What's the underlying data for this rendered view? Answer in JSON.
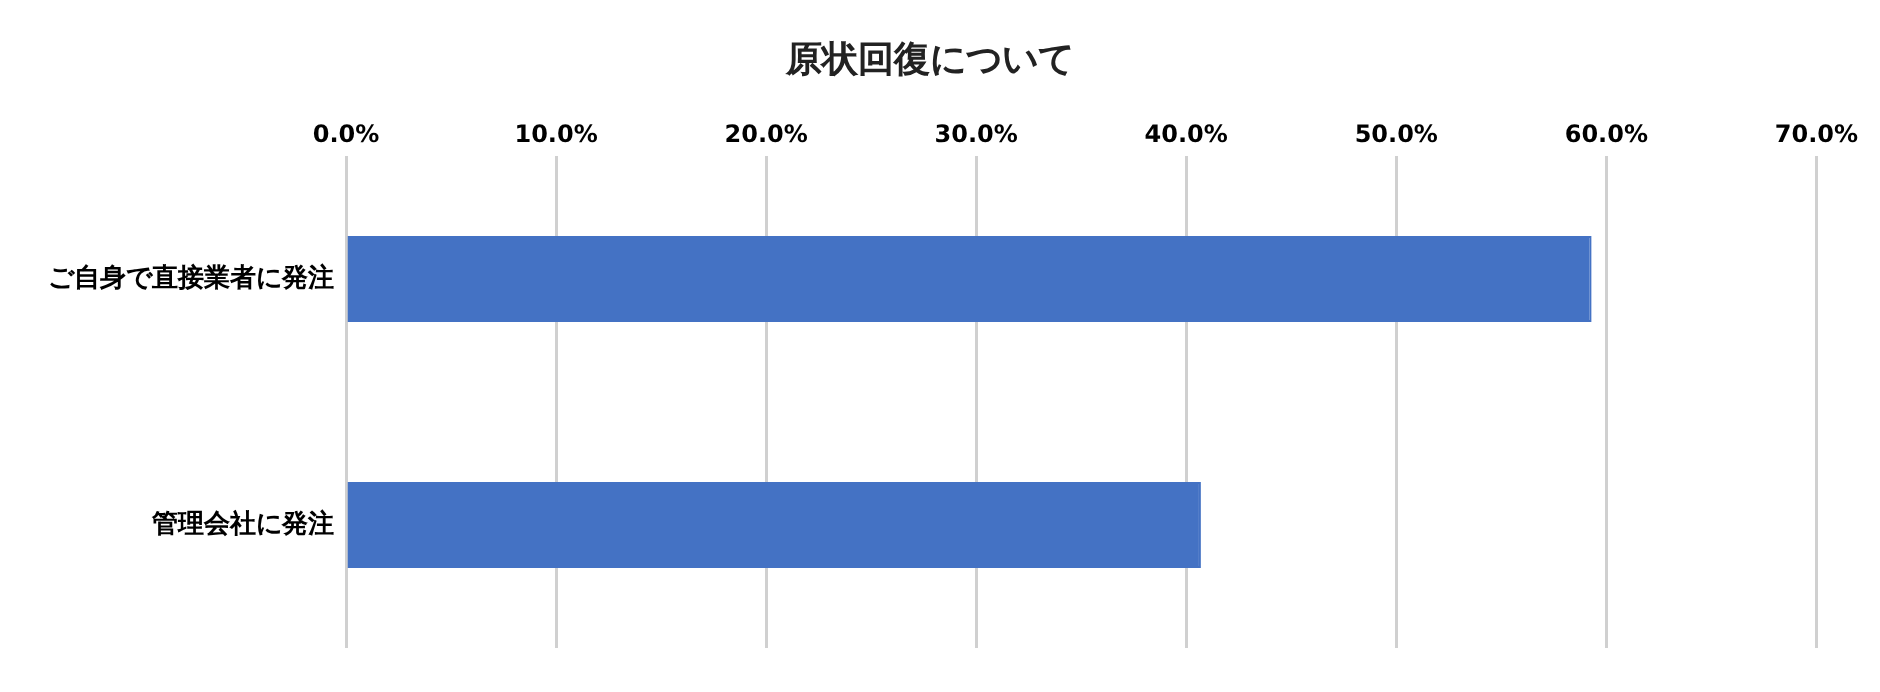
{
  "chart_data": {
    "type": "bar",
    "orientation": "horizontal",
    "title": "原状回復について",
    "categories": [
      "ご自身で直接業者に発注",
      "管理会社に発注"
    ],
    "values": [
      59.3,
      40.7
    ],
    "color": "#4472c4",
    "xlim": [
      0,
      70
    ],
    "xticks": [
      {
        "value": 0,
        "label": "0.0%"
      },
      {
        "value": 10,
        "label": "10.0%"
      },
      {
        "value": 20,
        "label": "20.0%"
      },
      {
        "value": 30,
        "label": "30.0%"
      },
      {
        "value": 40,
        "label": "40.0%"
      },
      {
        "value": 50,
        "label": "50.0%"
      },
      {
        "value": 60,
        "label": "60.0%"
      },
      {
        "value": 70,
        "label": "70.0%"
      }
    ],
    "grid": "x",
    "legend": false
  }
}
